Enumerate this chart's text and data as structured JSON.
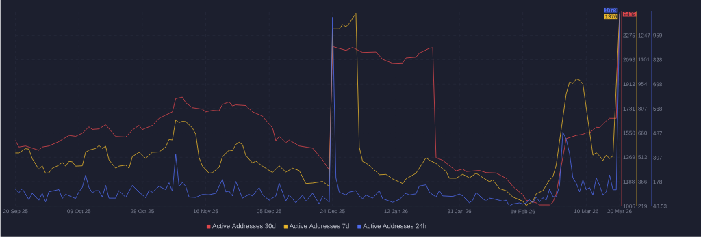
{
  "chart_data": {
    "type": "line",
    "grid": true,
    "legend": "bottom",
    "xlim": [
      "2025-09-20",
      "2026-03-20"
    ],
    "xticks": [
      {
        "value": "2025-09-20",
        "label": "20 Sep 25"
      },
      {
        "value": "2025-10-09",
        "label": "09 Oct 25"
      },
      {
        "value": "2025-10-28",
        "label": "28 Oct 25"
      },
      {
        "value": "2025-11-16",
        "label": "16 Nov 25"
      },
      {
        "value": "2025-12-05",
        "label": "05 Dec 25"
      },
      {
        "value": "2025-12-24",
        "label": "24 Dec 25"
      },
      {
        "value": "2026-01-12",
        "label": "12 Jan 26"
      },
      {
        "value": "2026-01-31",
        "label": "31 Jan 26"
      },
      {
        "value": "2026-02-19",
        "label": "19 Feb 26"
      },
      {
        "value": "2026-03-10",
        "label": "10 Mar 26"
      },
      {
        "value": "2026-03-20",
        "label": "20 Mar 26"
      }
    ],
    "ylim": [
      1006,
      2456
    ],
    "yticks": [
      1006,
      1188,
      1369,
      1550,
      1731,
      1912,
      2093,
      2275
    ],
    "y2lim": [
      219,
      1394
    ],
    "y2ticks": [
      219,
      366,
      513,
      660,
      807,
      954,
      1101,
      1247
    ],
    "y3lim": [
      48.53,
      1089
    ],
    "y3ticks": [
      48.53,
      178,
      307,
      437,
      568,
      698,
      828,
      959
    ],
    "series": [
      {
        "name": "Active Addresses 30d",
        "color": "#e0474c",
        "axis": "y",
        "x": [
          "2025-09-20",
          "2025-09-21",
          "2025-09-23",
          "2025-09-27",
          "2025-09-28",
          "2025-09-30",
          "2025-10-03",
          "2025-10-06",
          "2025-10-08",
          "2025-10-10",
          "2025-10-12",
          "2025-10-13",
          "2025-10-15",
          "2025-10-17",
          "2025-10-20",
          "2025-10-23",
          "2025-10-25",
          "2025-10-27",
          "2025-10-28",
          "2025-10-31",
          "2025-11-02",
          "2025-11-04",
          "2025-11-06",
          "2025-11-07",
          "2025-11-09",
          "2025-11-10",
          "2025-11-12",
          "2025-11-15",
          "2025-11-16",
          "2025-11-18",
          "2025-11-20",
          "2025-11-21",
          "2025-11-23",
          "2025-11-24",
          "2025-11-25",
          "2025-11-28",
          "2025-11-30",
          "2025-12-03",
          "2025-12-06",
          "2025-12-07",
          "2025-12-08",
          "2025-12-10",
          "2025-12-11",
          "2025-12-14",
          "2025-12-18",
          "2025-12-21",
          "2025-12-23",
          "2025-12-24",
          "2025-12-28",
          "2025-12-30",
          "2026-01-02",
          "2026-01-06",
          "2026-01-08",
          "2026-01-11",
          "2026-01-14",
          "2026-01-15",
          "2026-01-18",
          "2026-01-19",
          "2026-01-22",
          "2026-01-23",
          "2026-01-24",
          "2026-01-26",
          "2026-01-30",
          "2026-02-01",
          "2026-02-02",
          "2026-02-06",
          "2026-02-08",
          "2026-02-11",
          "2026-02-14",
          "2026-02-16",
          "2026-02-19",
          "2026-02-20",
          "2026-02-23",
          "2026-02-24",
          "2026-02-27",
          "2026-02-28",
          "2026-03-01",
          "2026-03-04",
          "2026-03-07",
          "2026-03-09",
          "2026-03-10",
          "2026-03-11",
          "2026-03-13",
          "2026-03-14",
          "2026-03-16",
          "2026-03-17",
          "2026-03-19",
          "2026-03-20"
        ],
        "values": [
          1492,
          1445,
          1453,
          1421,
          1445,
          1453,
          1485,
          1532,
          1525,
          1548,
          1595,
          1576,
          1580,
          1611,
          1524,
          1520,
          1571,
          1606,
          1575,
          1606,
          1658,
          1682,
          1706,
          1805,
          1816,
          1774,
          1737,
          1726,
          1706,
          1717,
          1714,
          1761,
          1780,
          1750,
          1758,
          1753,
          1706,
          1674,
          1587,
          1492,
          1524,
          1477,
          1496,
          1453,
          1437,
          1350,
          1274,
          2191,
          2163,
          2184,
          2148,
          2151,
          2096,
          2066,
          2069,
          2106,
          2112,
          2143,
          2178,
          2182,
          1366,
          1347,
          1268,
          1282,
          1263,
          1271,
          1255,
          1252,
          1213,
          1153,
          1089,
          1050,
          1031,
          1015,
          1015,
          1034,
          1097,
          1508,
          1532,
          1540,
          1551,
          1551,
          1592,
          1590,
          1639,
          1658,
          1658,
          2432
        ],
        "value_labels": [
          null,
          null,
          null,
          null,
          null,
          null,
          null,
          null,
          null,
          null,
          null,
          null,
          null,
          null,
          null,
          null,
          null,
          null,
          null,
          null,
          null,
          null,
          null,
          null,
          null,
          null,
          null,
          null,
          null,
          null,
          null,
          null,
          null,
          null,
          null,
          null,
          null,
          null,
          null,
          null,
          null,
          null,
          null,
          null,
          null,
          null,
          null,
          null,
          null,
          null,
          null,
          null,
          null,
          null,
          null,
          null,
          null,
          null,
          null,
          null,
          null,
          null,
          null,
          null,
          null,
          null,
          null,
          null,
          null,
          null,
          null,
          null,
          null,
          null,
          null,
          null,
          null,
          null,
          null,
          null,
          null,
          null,
          null,
          null,
          null,
          null,
          null,
          "2432"
        ]
      },
      {
        "name": "Active Addresses 7d",
        "color": "#e8b62c",
        "axis": "y2",
        "x": [
          "2025-09-20",
          "2025-09-21",
          "2025-09-23",
          "2025-09-24",
          "2025-09-25",
          "2025-09-27",
          "2025-09-28",
          "2025-09-29",
          "2025-09-30",
          "2025-10-01",
          "2025-10-03",
          "2025-10-04",
          "2025-10-05",
          "2025-10-06",
          "2025-10-07",
          "2025-10-08",
          "2025-10-10",
          "2025-10-11",
          "2025-10-12",
          "2025-10-14",
          "2025-10-15",
          "2025-10-16",
          "2025-10-17",
          "2025-10-18",
          "2025-10-20",
          "2025-10-21",
          "2025-10-23",
          "2025-10-24",
          "2025-10-25",
          "2025-10-27",
          "2025-10-29",
          "2025-10-31",
          "2025-11-02",
          "2025-11-04",
          "2025-11-05",
          "2025-11-06",
          "2025-11-07",
          "2025-11-08",
          "2025-11-09",
          "2025-11-10",
          "2025-11-12",
          "2025-11-13",
          "2025-11-14",
          "2025-11-15",
          "2025-11-17",
          "2025-11-18",
          "2025-11-20",
          "2025-11-21",
          "2025-11-23",
          "2025-11-24",
          "2025-11-25",
          "2025-11-26",
          "2025-11-27",
          "2025-11-28",
          "2025-11-30",
          "2025-12-01",
          "2025-12-03",
          "2025-12-06",
          "2025-12-08",
          "2025-12-10",
          "2025-12-12",
          "2025-12-14",
          "2025-12-16",
          "2025-12-18",
          "2025-12-20",
          "2025-12-21",
          "2025-12-23",
          "2025-12-24",
          "2025-12-26",
          "2025-12-27",
          "2025-12-28",
          "2025-12-29",
          "2025-12-31",
          "2026-01-01",
          "2026-01-02",
          "2026-01-03",
          "2026-01-05",
          "2026-01-07",
          "2026-01-09",
          "2026-01-11",
          "2026-01-14",
          "2026-01-15",
          "2026-01-18",
          "2026-01-21",
          "2026-01-22",
          "2026-01-24",
          "2026-01-27",
          "2026-01-28",
          "2026-01-30",
          "2026-02-01",
          "2026-02-03",
          "2026-02-05",
          "2026-02-09",
          "2026-02-10",
          "2026-02-12",
          "2026-02-14",
          "2026-02-16",
          "2026-02-19",
          "2026-02-20",
          "2026-02-22",
          "2026-02-23",
          "2026-02-25",
          "2026-02-27",
          "2026-02-28",
          "2026-03-01",
          "2026-03-04",
          "2026-03-05",
          "2026-03-06",
          "2026-03-07",
          "2026-03-08",
          "2026-03-09",
          "2026-03-12",
          "2026-03-13",
          "2026-03-14",
          "2026-03-15",
          "2026-03-16",
          "2026-03-17",
          "2026-03-18",
          "2026-03-20"
        ],
        "values": [
          539,
          539,
          565,
          562,
          505,
          440,
          462,
          417,
          419,
          447,
          466,
          483,
          460,
          488,
          486,
          460,
          462,
          543,
          556,
          566,
          584,
          566,
          580,
          498,
          447,
          460,
          466,
          447,
          517,
          543,
          507,
          543,
          545,
          575,
          620,
          617,
          738,
          722,
          730,
          728,
          690,
          652,
          511,
          460,
          417,
          420,
          453,
          517,
          556,
          553,
          590,
          603,
          589,
          524,
          479,
          490,
          460,
          421,
          462,
          424,
          447,
          433,
          355,
          358,
          364,
          368,
          338,
          1286,
          1286,
          1312,
          1299,
          1318,
          1380,
          575,
          488,
          479,
          447,
          408,
          410,
          383,
          355,
          383,
          417,
          511,
          496,
          476,
          428,
          387,
          387,
          411,
          389,
          417,
          366,
          377,
          325,
          312,
          274,
          248,
          223,
          248,
          293,
          312,
          377,
          396,
          466,
          895,
          966,
          957,
          985,
          978,
          953,
          526,
          541,
          521,
          494,
          526,
          505,
          521,
          1376
        ],
        "value_labels": [
          null,
          null,
          null,
          null,
          null,
          null,
          null,
          null,
          null,
          null,
          null,
          null,
          null,
          null,
          null,
          null,
          null,
          null,
          null,
          null,
          null,
          null,
          null,
          null,
          null,
          null,
          null,
          null,
          null,
          null,
          null,
          null,
          null,
          null,
          null,
          null,
          null,
          null,
          null,
          null,
          null,
          null,
          null,
          null,
          null,
          null,
          null,
          null,
          null,
          null,
          null,
          null,
          null,
          null,
          null,
          null,
          null,
          null,
          null,
          null,
          null,
          null,
          null,
          null,
          null,
          null,
          null,
          null,
          null,
          null,
          null,
          null,
          null,
          null,
          null,
          null,
          null,
          null,
          null,
          null,
          null,
          null,
          null,
          null,
          null,
          null,
          null,
          null,
          null,
          null,
          null,
          null,
          null,
          null,
          null,
          null,
          null,
          null,
          null,
          null,
          null,
          null,
          null,
          null,
          null,
          null,
          null,
          null,
          null,
          null,
          null,
          null,
          null,
          null,
          null,
          null,
          null,
          null,
          "1376"
        ]
      },
      {
        "name": "Active Addresses 24h",
        "color": "#4f6bed",
        "axis": "y3",
        "x": [
          "2025-09-20",
          "2025-09-21",
          "2025-09-22",
          "2025-09-24",
          "2025-09-25",
          "2025-09-27",
          "2025-09-28",
          "2025-09-29",
          "2025-09-30",
          "2025-10-03",
          "2025-10-04",
          "2025-10-05",
          "2025-10-08",
          "2025-10-09",
          "2025-10-10",
          "2025-10-11",
          "2025-10-12",
          "2025-10-13",
          "2025-10-14",
          "2025-10-15",
          "2025-10-16",
          "2025-10-17",
          "2025-10-18",
          "2025-10-20",
          "2025-10-21",
          "2025-10-23",
          "2025-10-25",
          "2025-10-27",
          "2025-10-29",
          "2025-10-30",
          "2025-10-31",
          "2025-11-02",
          "2025-11-04",
          "2025-11-05",
          "2025-11-06",
          "2025-11-07",
          "2025-11-08",
          "2025-11-09",
          "2025-11-10",
          "2025-11-11",
          "2025-11-13",
          "2025-11-15",
          "2025-11-17",
          "2025-11-19",
          "2025-11-21",
          "2025-11-22",
          "2025-11-23",
          "2025-11-24",
          "2025-11-25",
          "2025-11-27",
          "2025-11-29",
          "2025-11-30",
          "2025-12-02",
          "2025-12-03",
          "2025-12-05",
          "2025-12-07",
          "2025-12-08",
          "2025-12-10",
          "2025-12-11",
          "2025-12-13",
          "2025-12-15",
          "2025-12-16",
          "2025-12-18",
          "2025-12-19",
          "2025-12-20",
          "2025-12-21",
          "2025-12-23",
          "2025-12-24",
          "2025-12-25",
          "2025-12-26",
          "2025-12-28",
          "2025-12-29",
          "2025-12-31",
          "2026-01-01",
          "2026-01-02",
          "2026-01-03",
          "2026-01-05",
          "2026-01-07",
          "2026-01-08",
          "2026-01-11",
          "2026-01-13",
          "2026-01-15",
          "2026-01-16",
          "2026-01-18",
          "2026-01-19",
          "2026-01-21",
          "2026-01-22",
          "2026-01-24",
          "2026-01-25",
          "2026-01-26",
          "2026-01-29",
          "2026-01-31",
          "2026-02-01",
          "2026-02-03",
          "2026-02-04",
          "2026-02-05",
          "2026-02-07",
          "2026-02-08",
          "2026-02-09",
          "2026-02-10",
          "2026-02-13",
          "2026-02-14",
          "2026-02-15",
          "2026-02-16",
          "2026-02-18",
          "2026-02-19",
          "2026-02-20",
          "2026-02-21",
          "2026-02-22",
          "2026-02-23",
          "2026-02-24",
          "2026-02-25",
          "2026-02-26",
          "2026-02-27",
          "2026-02-28",
          "2026-03-01",
          "2026-03-02",
          "2026-03-03",
          "2026-03-04",
          "2026-03-05",
          "2026-03-06",
          "2026-03-07",
          "2026-03-08",
          "2026-03-09",
          "2026-03-10",
          "2026-03-11",
          "2026-03-12",
          "2026-03-13",
          "2026-03-14",
          "2026-03-15",
          "2026-03-16",
          "2026-03-17",
          "2026-03-18",
          "2026-03-19",
          "2026-03-20"
        ],
        "values": [
          137,
          120,
          142,
          83,
          117,
          80,
          117,
          71,
          125,
          137,
          89,
          112,
          89,
          125,
          148,
          214,
          148,
          120,
          131,
          131,
          97,
          159,
          91,
          91,
          132,
          95,
          159,
          124,
          93,
          132,
          123,
          154,
          137,
          173,
          128,
          324,
          154,
          175,
          154,
          97,
          95,
          111,
          109,
          117,
          191,
          125,
          128,
          103,
          180,
          91,
          111,
          103,
          148,
          109,
          80,
          103,
          171,
          76,
          109,
          66,
          107,
          74,
          117,
          89,
          60,
          101,
          69,
          1055,
          199,
          123,
          108,
          123,
          131,
          103,
          88,
          108,
          91,
          131,
          88,
          69,
          84,
          117,
          108,
          114,
          156,
          162,
          123,
          97,
          131,
          103,
          100,
          113,
          103,
          66,
          80,
          121,
          88,
          75,
          91,
          88,
          75,
          80,
          49,
          60,
          66,
          60,
          66,
          82,
          66,
          97,
          71,
          93,
          80,
          139,
          100,
          97,
          159,
          443,
          406,
          329,
          199,
          171,
          125,
          188,
          136,
          148,
          108,
          199,
          159,
          108,
          125,
          214,
          136,
          136,
          1079
        ],
        "value_labels": [
          null,
          null,
          null,
          null,
          null,
          null,
          null,
          null,
          null,
          null,
          null,
          null,
          null,
          null,
          null,
          null,
          null,
          null,
          null,
          null,
          null,
          null,
          null,
          null,
          null,
          null,
          null,
          null,
          null,
          null,
          null,
          null,
          null,
          null,
          null,
          null,
          null,
          null,
          null,
          null,
          null,
          null,
          null,
          null,
          null,
          null,
          null,
          null,
          null,
          null,
          null,
          null,
          null,
          null,
          null,
          null,
          null,
          null,
          null,
          null,
          null,
          null,
          null,
          null,
          null,
          null,
          null,
          null,
          null,
          null,
          null,
          null,
          null,
          null,
          null,
          null,
          null,
          null,
          null,
          null,
          null,
          null,
          null,
          null,
          null,
          null,
          null,
          null,
          null,
          null,
          null,
          null,
          null,
          null,
          null,
          null,
          null,
          null,
          null,
          null,
          null,
          null,
          null,
          null,
          null,
          null,
          null,
          null,
          null,
          null,
          null,
          null,
          null,
          null,
          null,
          null,
          null,
          null,
          null,
          null,
          null,
          null,
          null,
          null,
          null,
          null,
          null,
          null,
          null,
          null,
          null,
          null,
          null,
          null,
          "1079"
        ]
      }
    ]
  }
}
